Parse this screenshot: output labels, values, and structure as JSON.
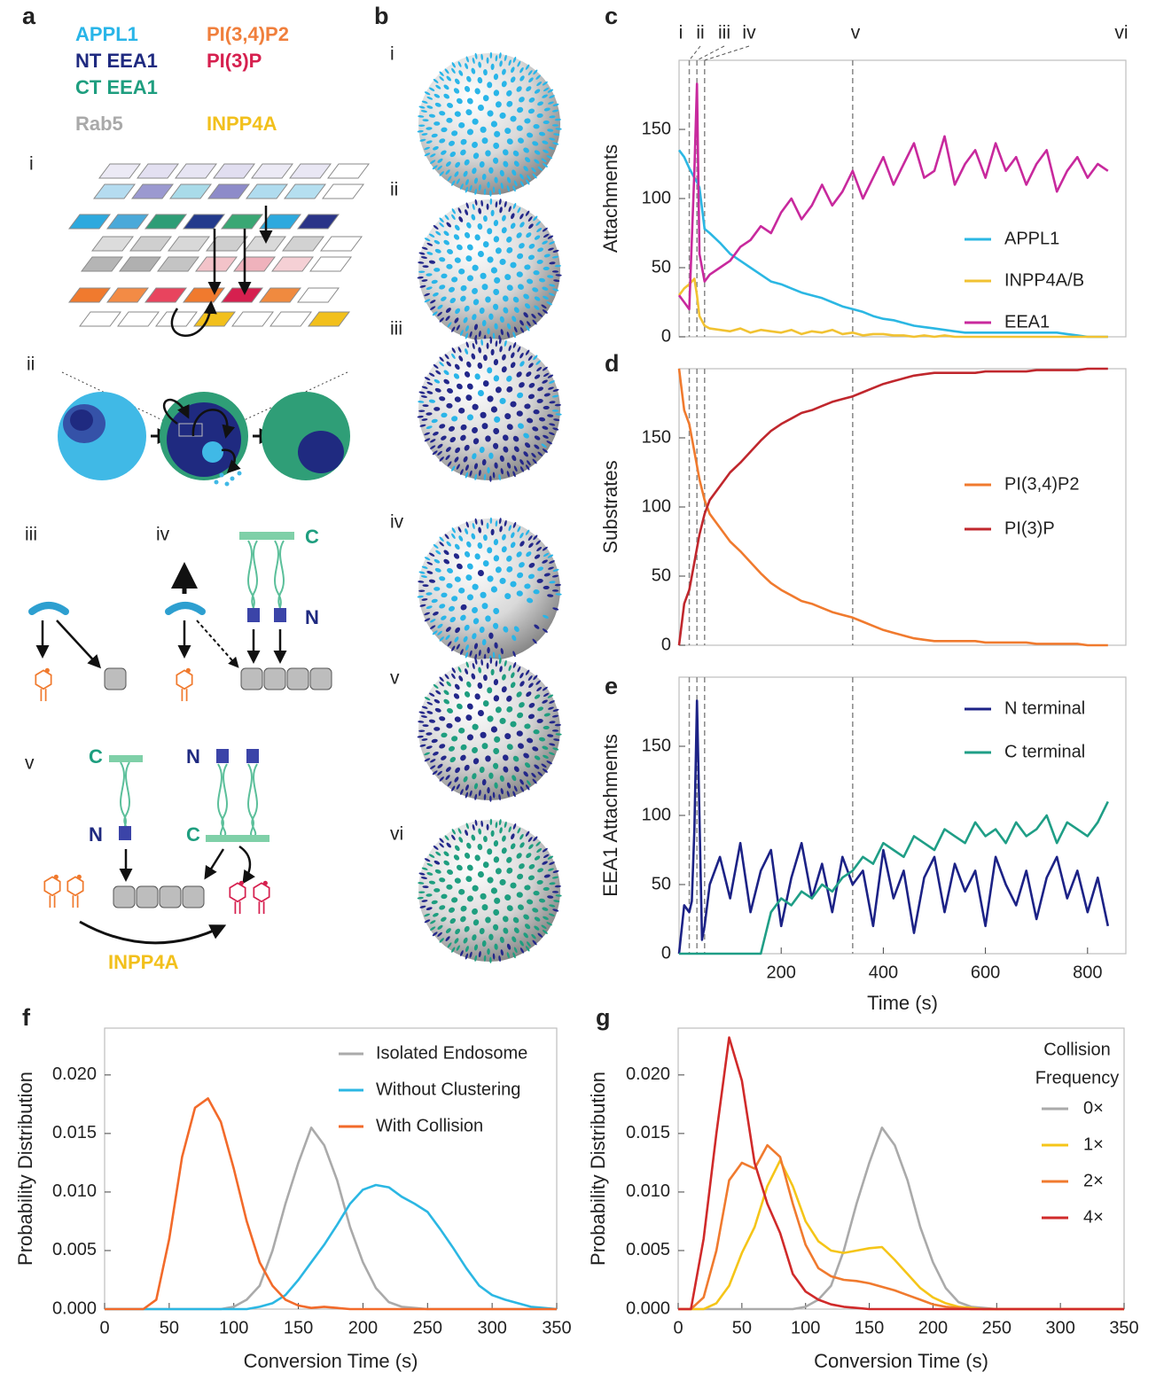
{
  "figure": {
    "panel_labels": [
      "a",
      "b",
      "c",
      "d",
      "e",
      "f",
      "g"
    ],
    "panel_a": {
      "legend": [
        {
          "name": "APPL1",
          "color": "#29b5e8"
        },
        {
          "name": "PI(3,4)P2",
          "color": "#f07f3c"
        },
        {
          "name": "NT EEA1",
          "color": "#1f2a80"
        },
        {
          "name": "PI(3)P",
          "color": "#d6204f"
        },
        {
          "name": "CT EEA1",
          "color": "#1e9e7f"
        },
        {
          "name": "Rab5",
          "color": "#a9a9a9"
        },
        {
          "name": "INPP4A",
          "color": "#f2c01c"
        }
      ],
      "steps": [
        "i",
        "ii",
        "iii",
        "iv",
        "v"
      ],
      "terminal_labels": [
        "C",
        "N",
        "C",
        "N",
        "N",
        "C"
      ],
      "enzyme_label": "INPP4A"
    },
    "panel_b": {
      "states": [
        "i",
        "ii",
        "iii",
        "iv",
        "v",
        "vi"
      ]
    }
  },
  "chart_data": [
    {
      "type": "line",
      "ylabel": "Attachments",
      "xlim": [
        0,
        875
      ],
      "ylim": [
        0,
        200
      ],
      "yticks": [
        0,
        50,
        100,
        150
      ],
      "annotations": [
        "i",
        "ii",
        "iii",
        "iv",
        "v",
        "vi"
      ],
      "vlines": [
        20,
        35,
        50,
        340
      ],
      "x": [
        0,
        10,
        20,
        30,
        35,
        40,
        50,
        60,
        80,
        100,
        120,
        140,
        160,
        180,
        200,
        220,
        240,
        260,
        280,
        300,
        320,
        340,
        360,
        380,
        400,
        420,
        440,
        460,
        480,
        500,
        520,
        540,
        560,
        580,
        600,
        620,
        640,
        660,
        680,
        700,
        720,
        740,
        760,
        780,
        800,
        820,
        840
      ],
      "series": [
        {
          "name": "APPL1",
          "color": "#2bb7e3",
          "values": [
            135,
            130,
            122,
            115,
            112,
            108,
            78,
            75,
            68,
            60,
            55,
            50,
            45,
            40,
            38,
            35,
            32,
            30,
            28,
            25,
            22,
            20,
            18,
            15,
            13,
            12,
            10,
            8,
            7,
            6,
            5,
            4,
            3,
            3,
            3,
            3,
            3,
            3,
            3,
            3,
            3,
            3,
            2,
            1,
            0,
            0,
            0
          ]
        },
        {
          "name": "INPP4A/B",
          "color": "#f1c232",
          "values": [
            30,
            35,
            38,
            42,
            30,
            15,
            8,
            6,
            5,
            4,
            6,
            3,
            5,
            4,
            3,
            5,
            2,
            4,
            3,
            5,
            2,
            3,
            1,
            2,
            2,
            1,
            1,
            0,
            1,
            0,
            1,
            0,
            0,
            0,
            0,
            0,
            0,
            0,
            0,
            0,
            0,
            0,
            0,
            0,
            0,
            0,
            0
          ]
        },
        {
          "name": "EEA1",
          "color": "#c8299d",
          "values": [
            30,
            25,
            20,
            120,
            183,
            60,
            40,
            45,
            50,
            55,
            65,
            70,
            80,
            75,
            90,
            100,
            85,
            95,
            110,
            95,
            105,
            120,
            100,
            115,
            130,
            110,
            125,
            140,
            115,
            120,
            145,
            110,
            125,
            135,
            115,
            140,
            120,
            130,
            110,
            125,
            135,
            105,
            120,
            130,
            115,
            125,
            120
          ]
        }
      ]
    },
    {
      "type": "line",
      "ylabel": "Substrates",
      "xlim": [
        0,
        875
      ],
      "ylim": [
        0,
        200
      ],
      "yticks": [
        0,
        50,
        100,
        150
      ],
      "vlines": [
        20,
        35,
        50,
        340
      ],
      "x": [
        0,
        10,
        20,
        30,
        40,
        50,
        60,
        80,
        100,
        120,
        140,
        160,
        180,
        200,
        220,
        240,
        260,
        280,
        300,
        320,
        340,
        360,
        380,
        400,
        420,
        440,
        460,
        480,
        500,
        520,
        540,
        560,
        580,
        600,
        620,
        640,
        660,
        680,
        700,
        720,
        740,
        760,
        780,
        800,
        820,
        840
      ],
      "series": [
        {
          "name": "PI(3,4)P2",
          "color": "#f07a2e",
          "values": [
            200,
            170,
            160,
            140,
            120,
            105,
            95,
            85,
            75,
            68,
            60,
            52,
            45,
            40,
            36,
            32,
            30,
            27,
            24,
            22,
            20,
            17,
            14,
            11,
            9,
            7,
            5,
            4,
            3,
            3,
            3,
            3,
            3,
            2,
            2,
            2,
            2,
            2,
            1,
            1,
            1,
            1,
            1,
            0,
            0,
            0
          ]
        },
        {
          "name": "PI(3)P",
          "color": "#c0272d",
          "values": [
            0,
            30,
            40,
            60,
            80,
            95,
            105,
            115,
            125,
            132,
            140,
            148,
            155,
            160,
            164,
            168,
            170,
            173,
            176,
            178,
            180,
            183,
            186,
            189,
            191,
            193,
            195,
            196,
            197,
            197,
            197,
            197,
            197,
            198,
            198,
            198,
            198,
            198,
            199,
            199,
            199,
            199,
            199,
            200,
            200,
            200
          ]
        }
      ]
    },
    {
      "type": "line",
      "ylabel": "EEA1 Attachments",
      "xlabel": "Time (s)",
      "xlim": [
        0,
        875
      ],
      "ylim": [
        0,
        200
      ],
      "yticks": [
        0,
        50,
        100,
        150
      ],
      "xticks": [
        200,
        400,
        600,
        800
      ],
      "vlines": [
        20,
        35,
        50,
        340
      ],
      "x": [
        0,
        10,
        20,
        25,
        30,
        35,
        40,
        45,
        50,
        60,
        80,
        100,
        120,
        140,
        160,
        180,
        200,
        220,
        240,
        260,
        280,
        300,
        320,
        340,
        360,
        380,
        400,
        420,
        440,
        460,
        480,
        500,
        520,
        540,
        560,
        580,
        600,
        620,
        640,
        660,
        680,
        700,
        720,
        740,
        760,
        780,
        800,
        820,
        840
      ],
      "series": [
        {
          "name": "N terminal",
          "color": "#1c2286",
          "values": [
            0,
            35,
            30,
            38,
            90,
            183,
            100,
            10,
            20,
            50,
            70,
            40,
            80,
            30,
            60,
            75,
            20,
            55,
            80,
            40,
            65,
            30,
            70,
            50,
            60,
            20,
            75,
            40,
            60,
            15,
            55,
            70,
            30,
            65,
            45,
            60,
            20,
            70,
            50,
            35,
            60,
            25,
            55,
            70,
            40,
            60,
            30,
            55,
            20
          ]
        },
        {
          "name": "C terminal",
          "color": "#1f9e86",
          "values": [
            0,
            0,
            0,
            0,
            0,
            0,
            0,
            0,
            0,
            0,
            0,
            0,
            0,
            0,
            0,
            30,
            40,
            35,
            45,
            40,
            50,
            45,
            55,
            60,
            70,
            65,
            80,
            75,
            70,
            85,
            80,
            75,
            90,
            85,
            80,
            95,
            85,
            90,
            80,
            95,
            85,
            90,
            100,
            80,
            95,
            90,
            85,
            95,
            110
          ]
        }
      ]
    },
    {
      "type": "line",
      "ylabel": "Probability Distribution",
      "xlabel": "Conversion Time (s)",
      "xlim": [
        0,
        350
      ],
      "ylim": [
        0,
        0.024
      ],
      "xticks": [
        0,
        50,
        100,
        150,
        200,
        250,
        300,
        350
      ],
      "yticks": [
        {
          "value": 0,
          "label": "0.000"
        },
        {
          "value": 0.005,
          "label": "0.005"
        },
        {
          "value": 0.01,
          "label": "0.010"
        },
        {
          "value": 0.015,
          "label": "0.015"
        },
        {
          "value": 0.02,
          "label": "0.020"
        }
      ],
      "x": [
        0,
        10,
        20,
        30,
        40,
        50,
        60,
        70,
        80,
        90,
        100,
        110,
        120,
        130,
        140,
        150,
        160,
        170,
        180,
        190,
        200,
        210,
        220,
        230,
        240,
        250,
        260,
        270,
        280,
        290,
        300,
        310,
        320,
        330,
        340,
        350
      ],
      "series": [
        {
          "name": "Isolated Endosome",
          "color": "#aaaaaa",
          "values": [
            0,
            0,
            0,
            0,
            0,
            0,
            0,
            0,
            0,
            0,
            0.0002,
            0.0008,
            0.002,
            0.005,
            0.009,
            0.0125,
            0.0155,
            0.014,
            0.011,
            0.007,
            0.004,
            0.0018,
            0.0006,
            0.0002,
            0.0001,
            0,
            0,
            0,
            0,
            0,
            0,
            0,
            0,
            0,
            0,
            0
          ]
        },
        {
          "name": "Without Clustering",
          "color": "#2bb7e3",
          "values": [
            0,
            0,
            0,
            0,
            0,
            0,
            0,
            0,
            0,
            0,
            0,
            0,
            0.0002,
            0.0005,
            0.0012,
            0.0025,
            0.004,
            0.0055,
            0.0072,
            0.009,
            0.0102,
            0.0106,
            0.0104,
            0.0096,
            0.009,
            0.0083,
            0.0068,
            0.0052,
            0.0035,
            0.002,
            0.0012,
            0.0008,
            0.0005,
            0.0002,
            0.0001,
            0
          ]
        },
        {
          "name": "With Collision",
          "color": "#f26a2a",
          "values": [
            0,
            0,
            0,
            0,
            0.0008,
            0.006,
            0.013,
            0.0172,
            0.018,
            0.016,
            0.012,
            0.0075,
            0.004,
            0.002,
            0.0008,
            0.0003,
            0.0001,
            0.0002,
            0.0001,
            0,
            0,
            0,
            0,
            0,
            0,
            0,
            0,
            0,
            0,
            0,
            0,
            0,
            0,
            0,
            0,
            0
          ]
        }
      ]
    },
    {
      "type": "line",
      "ylabel": "Probability Distribution",
      "xlabel": "Conversion Time (s)",
      "xlim": [
        0,
        350
      ],
      "ylim": [
        0,
        0.024
      ],
      "legend_title": [
        "Collision",
        "Frequency"
      ],
      "xticks": [
        0,
        50,
        100,
        150,
        200,
        250,
        300,
        350
      ],
      "yticks": [
        {
          "value": 0,
          "label": "0.000"
        },
        {
          "value": 0.005,
          "label": "0.005"
        },
        {
          "value": 0.01,
          "label": "0.010"
        },
        {
          "value": 0.015,
          "label": "0.015"
        },
        {
          "value": 0.02,
          "label": "0.020"
        }
      ],
      "x": [
        0,
        10,
        20,
        30,
        40,
        50,
        60,
        70,
        80,
        90,
        100,
        110,
        120,
        130,
        140,
        150,
        160,
        170,
        180,
        190,
        200,
        210,
        220,
        230,
        240,
        250,
        260,
        270,
        280,
        290,
        300,
        310,
        320,
        330,
        340,
        350
      ],
      "series": [
        {
          "name": "0×",
          "color": "#aaaaaa",
          "values": [
            0,
            0,
            0,
            0,
            0,
            0,
            0,
            0,
            0,
            0,
            0.0002,
            0.0008,
            0.002,
            0.005,
            0.009,
            0.0125,
            0.0155,
            0.014,
            0.011,
            0.007,
            0.004,
            0.0018,
            0.0006,
            0.0002,
            0.0001,
            0,
            0,
            0,
            0,
            0,
            0,
            0,
            0,
            0,
            0,
            0
          ]
        },
        {
          "name": "1×",
          "color": "#f5c518",
          "values": [
            0,
            0,
            0,
            0.0005,
            0.002,
            0.0048,
            0.007,
            0.0105,
            0.0127,
            0.0105,
            0.0075,
            0.0058,
            0.005,
            0.0048,
            0.005,
            0.0052,
            0.0053,
            0.0042,
            0.003,
            0.0018,
            0.001,
            0.0005,
            0.0002,
            0.0001,
            0,
            0,
            0,
            0,
            0,
            0,
            0,
            0,
            0,
            0,
            0,
            0
          ]
        },
        {
          "name": "2×",
          "color": "#f07a2e",
          "values": [
            0,
            0,
            0.001,
            0.005,
            0.011,
            0.0125,
            0.012,
            0.014,
            0.013,
            0.009,
            0.0055,
            0.0035,
            0.0028,
            0.0025,
            0.0024,
            0.0022,
            0.0019,
            0.0016,
            0.0012,
            0.0008,
            0.0004,
            0.0002,
            0.0001,
            0,
            0,
            0,
            0,
            0,
            0,
            0,
            0,
            0,
            0,
            0,
            0,
            0
          ]
        },
        {
          "name": "4×",
          "color": "#d02a2a",
          "values": [
            0,
            0,
            0.006,
            0.015,
            0.0232,
            0.0195,
            0.0125,
            0.009,
            0.0065,
            0.003,
            0.0015,
            0.0008,
            0.0004,
            0.0002,
            0.0001,
            0,
            0,
            0,
            0,
            0,
            0,
            0,
            0,
            0,
            0,
            0,
            0,
            0,
            0,
            0,
            0,
            0,
            0,
            0,
            0,
            0
          ]
        }
      ]
    }
  ]
}
